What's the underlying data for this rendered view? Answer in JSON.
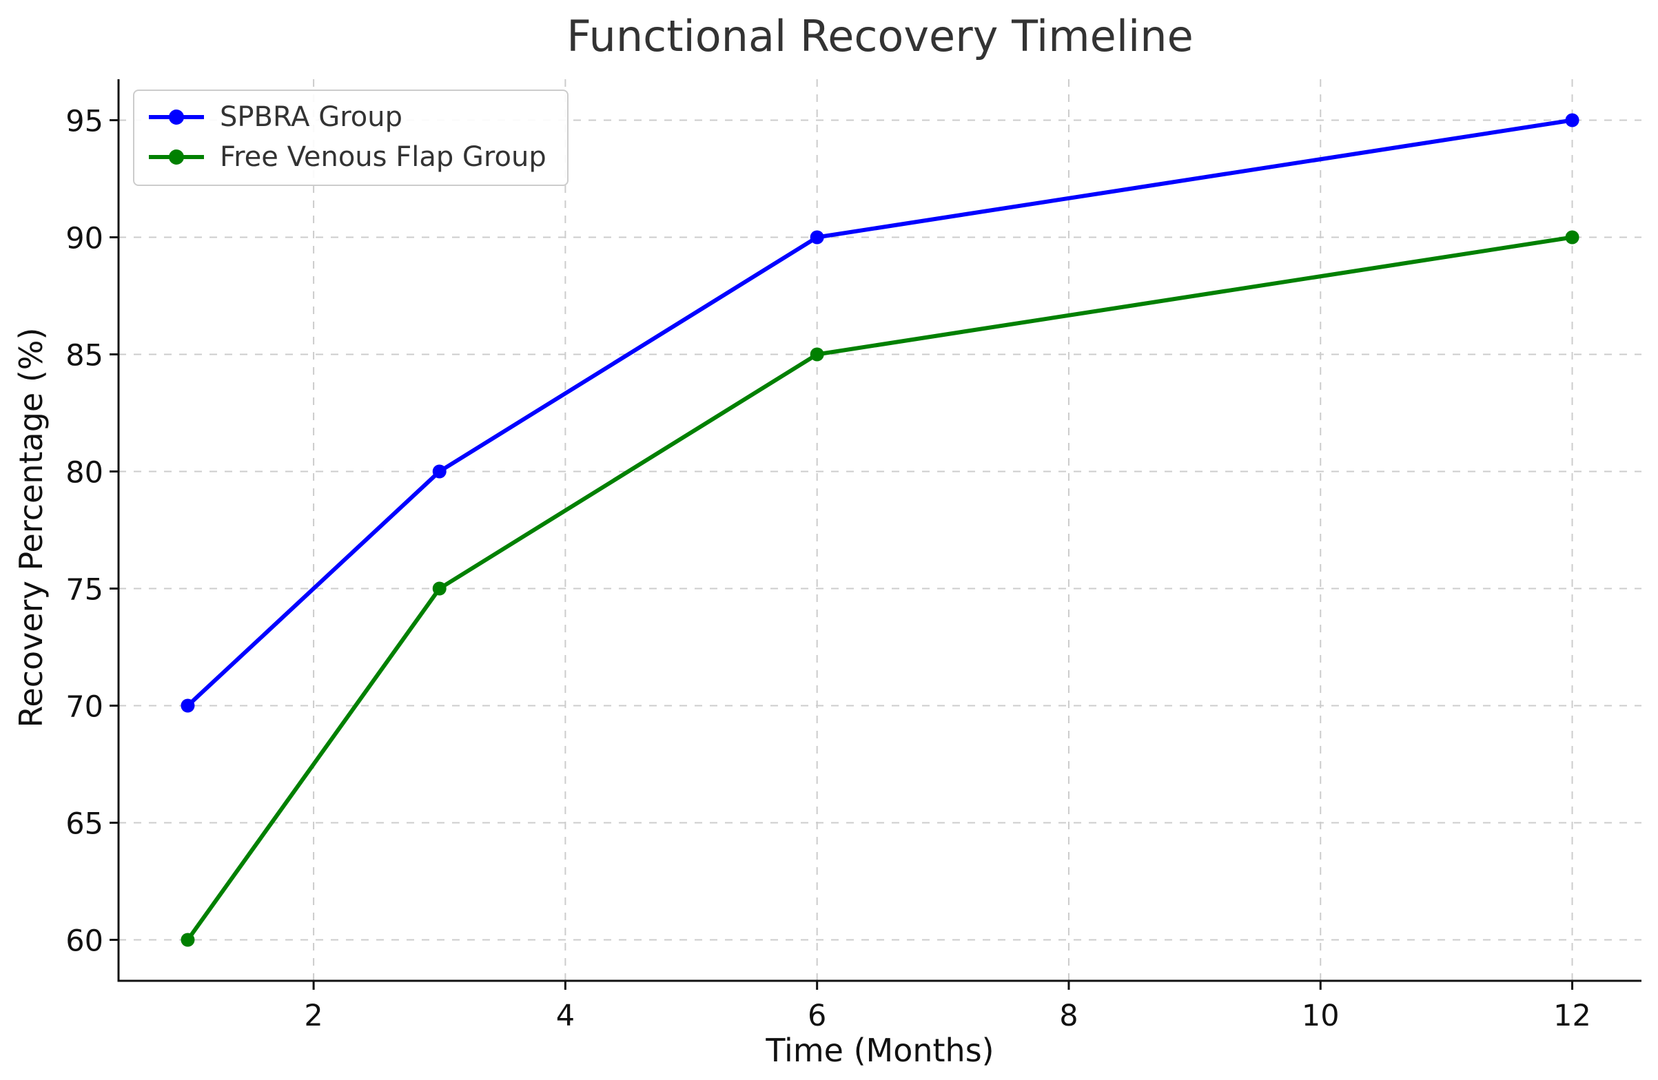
{
  "chart_data": {
    "type": "line",
    "title": "Functional Recovery Timeline",
    "xlabel": "Time (Months)",
    "ylabel": "Recovery Percentage (%)",
    "x": [
      1,
      3,
      6,
      12
    ],
    "series": [
      {
        "name": "SPBRA Group",
        "color": "#0000ff",
        "marker": "circle",
        "values": [
          70,
          80,
          90,
          95
        ]
      },
      {
        "name": "Free Venous Flap Group",
        "color": "#008000",
        "marker": "circle",
        "values": [
          60,
          75,
          85,
          90
        ]
      }
    ],
    "xlim": [
      0.45,
      12.55
    ],
    "ylim": [
      58.25,
      96.75
    ],
    "xticks": [
      2,
      4,
      6,
      8,
      10,
      12
    ],
    "yticks": [
      60,
      65,
      70,
      75,
      80,
      85,
      90,
      95
    ],
    "grid": true,
    "grid_style": "dashed",
    "legend_position": "upper left",
    "styles": {
      "grid_color": "#cccccc",
      "spine_color": "#111111",
      "tick_label_color": "#111111",
      "title_color": "#333333",
      "background": "#ffffff"
    }
  }
}
